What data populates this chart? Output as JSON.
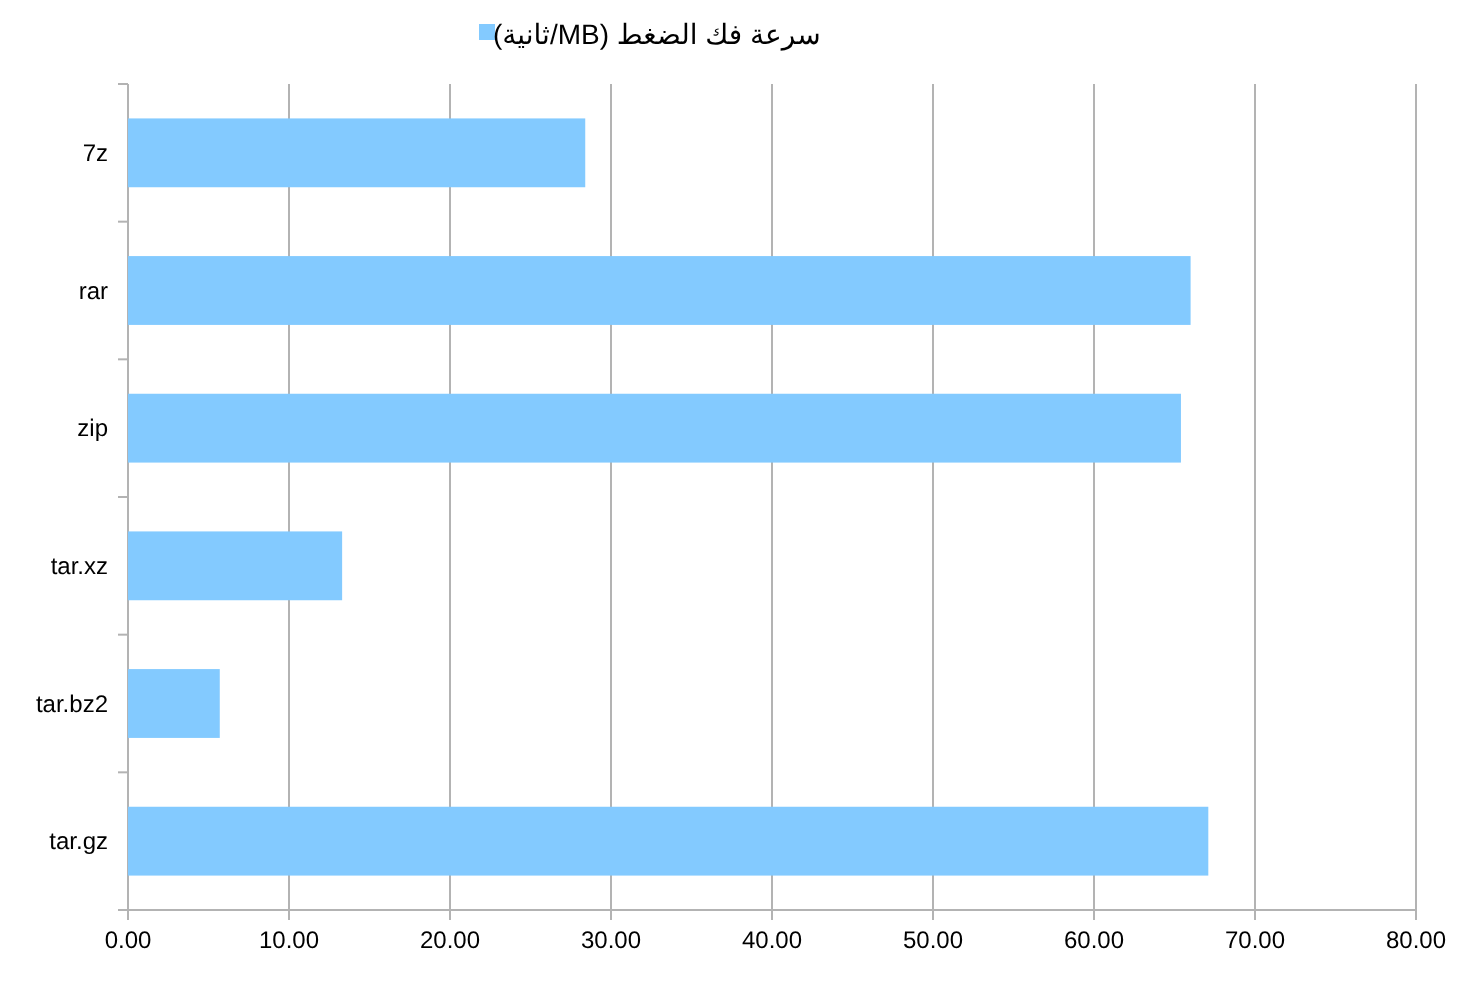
{
  "chart_data": {
    "type": "bar",
    "orientation": "horizontal",
    "categories": [
      "7z",
      "rar",
      "zip",
      "tar.xz",
      "tar.bz2",
      "tar.gz"
    ],
    "series": [
      {
        "name": "سرعة فك الضغط (MB/ثانية)",
        "color": "#83caff",
        "values": [
          28.4,
          66.0,
          65.4,
          13.3,
          5.7,
          67.1
        ]
      }
    ],
    "xlim": [
      0,
      80
    ],
    "xticks": [
      {
        "value": 0,
        "label": "0.00"
      },
      {
        "value": 10,
        "label": "10.00"
      },
      {
        "value": 20,
        "label": "20.00"
      },
      {
        "value": 30,
        "label": "30.00"
      },
      {
        "value": 40,
        "label": "40.00"
      },
      {
        "value": 50,
        "label": "50.00"
      },
      {
        "value": 60,
        "label": "60.00"
      },
      {
        "value": 70,
        "label": "70.00"
      },
      {
        "value": 80,
        "label": "80.00"
      }
    ],
    "grid": "x",
    "legend": "top"
  }
}
